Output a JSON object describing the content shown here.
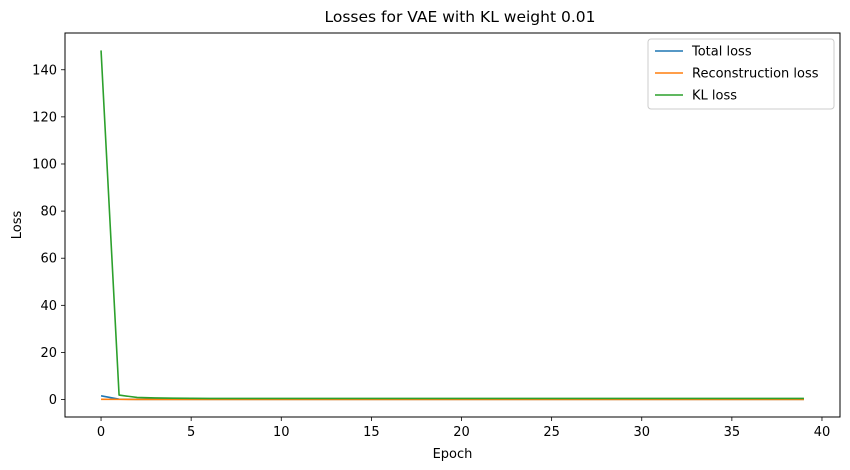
{
  "chart_data": {
    "type": "line",
    "title": "Losses for VAE with KL weight 0.01",
    "xlabel": "Epoch",
    "ylabel": "Loss",
    "xlim": [
      -2,
      41
    ],
    "ylim": [
      -7.4,
      155.6
    ],
    "xticks": [
      0,
      5,
      10,
      15,
      20,
      25,
      30,
      35,
      40
    ],
    "yticks": [
      0,
      20,
      40,
      60,
      80,
      100,
      120,
      140
    ],
    "grid": false,
    "legend_position": "top-right",
    "x": [
      0,
      1,
      2,
      3,
      4,
      5,
      6,
      7,
      8,
      9,
      10,
      11,
      12,
      13,
      14,
      15,
      16,
      17,
      18,
      19,
      20,
      21,
      22,
      23,
      24,
      25,
      26,
      27,
      28,
      29,
      30,
      31,
      32,
      33,
      34,
      35,
      36,
      37,
      38,
      39
    ],
    "series": [
      {
        "name": "Total loss",
        "color": "#1f77b4",
        "values": [
          1.6,
          0.15,
          0.12,
          0.11,
          0.1,
          0.1,
          0.1,
          0.09,
          0.09,
          0.09,
          0.09,
          0.09,
          0.09,
          0.09,
          0.09,
          0.09,
          0.09,
          0.09,
          0.09,
          0.09,
          0.09,
          0.09,
          0.09,
          0.09,
          0.09,
          0.09,
          0.09,
          0.09,
          0.09,
          0.09,
          0.09,
          0.09,
          0.09,
          0.09,
          0.09,
          0.09,
          0.09,
          0.09,
          0.09,
          0.09
        ]
      },
      {
        "name": "Reconstruction loss",
        "color": "#ff7f0e",
        "values": [
          0.12,
          0.08,
          0.07,
          0.07,
          0.07,
          0.07,
          0.07,
          0.07,
          0.07,
          0.07,
          0.07,
          0.07,
          0.07,
          0.07,
          0.07,
          0.07,
          0.07,
          0.07,
          0.07,
          0.07,
          0.07,
          0.07,
          0.07,
          0.07,
          0.07,
          0.07,
          0.07,
          0.07,
          0.07,
          0.07,
          0.07,
          0.07,
          0.07,
          0.07,
          0.07,
          0.07,
          0.07,
          0.07,
          0.07,
          0.07
        ]
      },
      {
        "name": "KL loss",
        "color": "#2ca02c",
        "values": [
          148.2,
          1.9,
          0.9,
          0.7,
          0.6,
          0.55,
          0.5,
          0.5,
          0.5,
          0.5,
          0.5,
          0.5,
          0.5,
          0.5,
          0.5,
          0.5,
          0.5,
          0.5,
          0.5,
          0.5,
          0.5,
          0.5,
          0.5,
          0.5,
          0.5,
          0.5,
          0.5,
          0.5,
          0.5,
          0.5,
          0.5,
          0.5,
          0.5,
          0.5,
          0.5,
          0.5,
          0.5,
          0.5,
          0.5,
          0.5
        ]
      }
    ]
  }
}
